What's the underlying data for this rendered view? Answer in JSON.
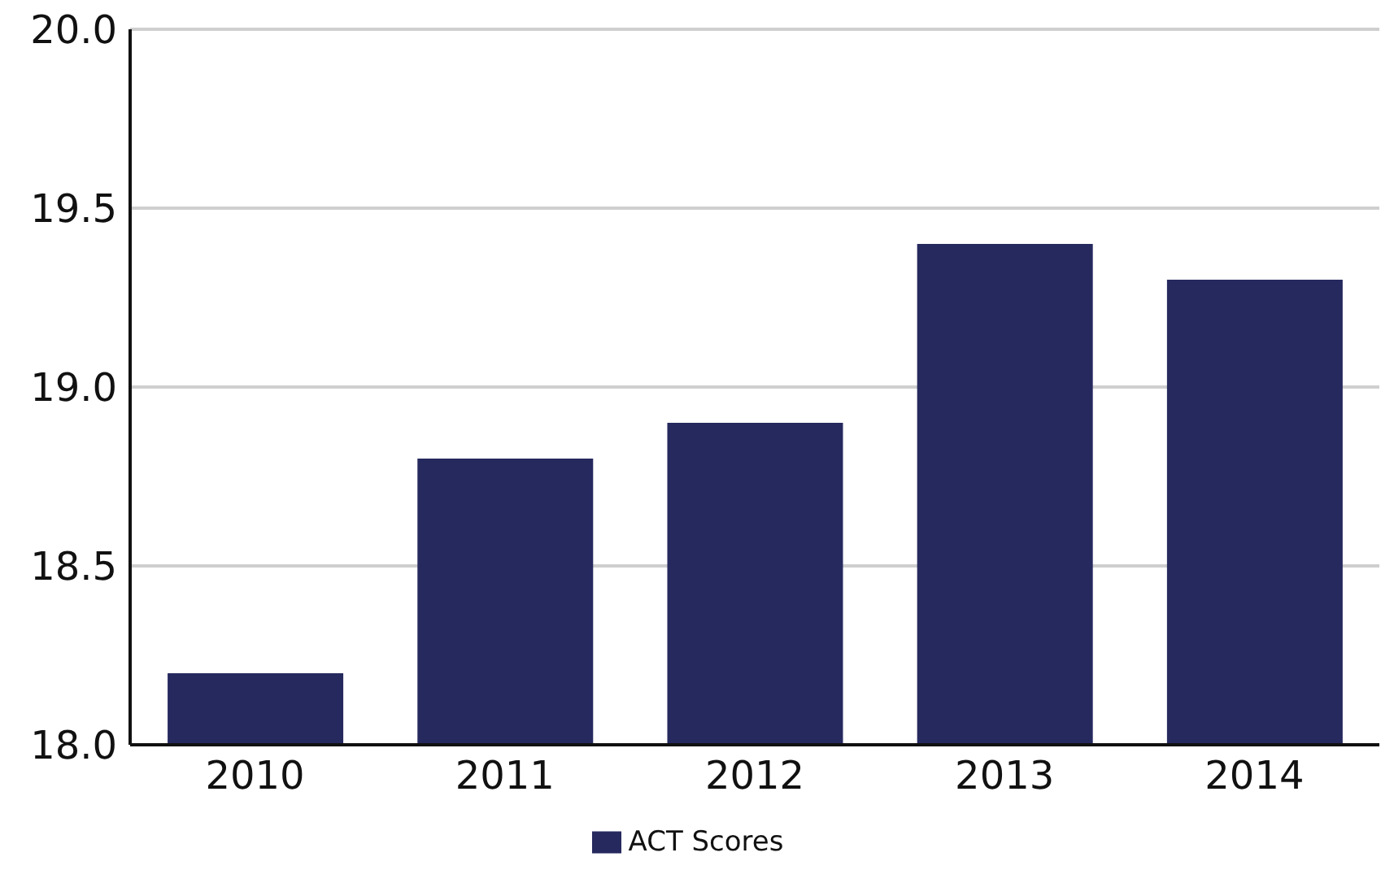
{
  "chart_data": {
    "type": "bar",
    "categories": [
      "2010",
      "2011",
      "2012",
      "2013",
      "2014"
    ],
    "series": [
      {
        "name": "ACT Scores",
        "color": "#25295e",
        "values": [
          18.2,
          18.8,
          18.9,
          19.4,
          19.3
        ]
      }
    ],
    "ylim": [
      18,
      20
    ],
    "yticks": [
      {
        "value": 18,
        "label": "18.0"
      },
      {
        "value": 18.5,
        "label": "18.5"
      },
      {
        "value": 19,
        "label": "19.0"
      },
      {
        "value": 19.5,
        "label": "19.5"
      },
      {
        "value": 20,
        "label": "20.0"
      }
    ],
    "grid": "y",
    "legend": "bottom"
  }
}
